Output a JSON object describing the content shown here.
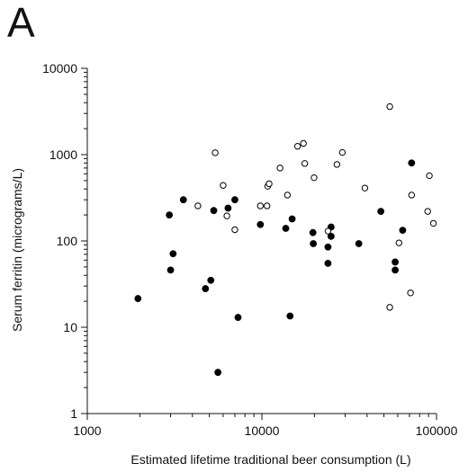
{
  "panel_label": "A",
  "chart_data": {
    "type": "scatter",
    "title": "",
    "xlabel": "Estimated lifetime traditional beer consumption (L)",
    "ylabel": "Serum ferritin (micrograms/L)",
    "xscale": "log",
    "yscale": "log",
    "xlim": [
      1000,
      100000
    ],
    "ylim": [
      1,
      10000
    ],
    "xticks": [
      1000,
      10000,
      100000
    ],
    "xtick_labels": [
      "1000",
      "10000",
      "100000"
    ],
    "yticks": [
      1,
      10,
      100,
      1000,
      10000
    ],
    "ytick_labels": [
      "1",
      "10",
      "100",
      "1000",
      "10000"
    ],
    "grid": false,
    "series": [
      {
        "marker": "filled-circle",
        "color": "#000000",
        "points": [
          [
            1950,
            21.5
          ],
          [
            2950,
            200
          ],
          [
            3000,
            46
          ],
          [
            3100,
            71
          ],
          [
            3550,
            300
          ],
          [
            4750,
            28
          ],
          [
            5100,
            35
          ],
          [
            5300,
            225
          ],
          [
            5600,
            3
          ],
          [
            6400,
            240
          ],
          [
            7000,
            300
          ],
          [
            7300,
            13
          ],
          [
            9800,
            155
          ],
          [
            13700,
            140
          ],
          [
            14500,
            13.5
          ],
          [
            14900,
            180
          ],
          [
            19600,
            125
          ],
          [
            19700,
            93
          ],
          [
            23900,
            85
          ],
          [
            23900,
            55
          ],
          [
            24900,
            145
          ],
          [
            24900,
            113
          ],
          [
            35900,
            93
          ],
          [
            48000,
            220
          ],
          [
            58000,
            57
          ],
          [
            58000,
            46
          ],
          [
            64000,
            133
          ],
          [
            72000,
            800
          ]
        ]
      },
      {
        "marker": "open-circle",
        "color": "#000000",
        "points": [
          [
            4300,
            255
          ],
          [
            5400,
            1050
          ],
          [
            6000,
            440
          ],
          [
            6300,
            195
          ],
          [
            7000,
            135
          ],
          [
            9800,
            255
          ],
          [
            10700,
            255
          ],
          [
            10800,
            430
          ],
          [
            11000,
            460
          ],
          [
            12700,
            700
          ],
          [
            14000,
            340
          ],
          [
            16000,
            1250
          ],
          [
            17300,
            1350
          ],
          [
            17600,
            790
          ],
          [
            19900,
            540
          ],
          [
            23900,
            130
          ],
          [
            26900,
            770
          ],
          [
            28900,
            1060
          ],
          [
            38900,
            410
          ],
          [
            54000,
            17
          ],
          [
            54000,
            3600
          ],
          [
            61000,
            95
          ],
          [
            71000,
            25
          ],
          [
            72000,
            340
          ],
          [
            89000,
            220
          ],
          [
            91000,
            570
          ],
          [
            96000,
            160
          ]
        ]
      }
    ]
  }
}
